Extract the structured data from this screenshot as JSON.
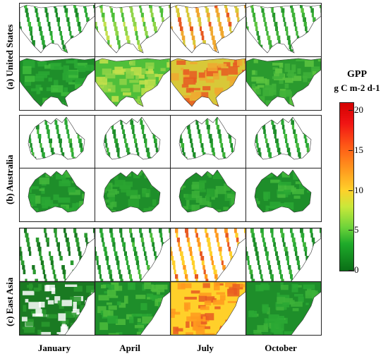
{
  "legend": {
    "title_line1": "GPP",
    "title_line2": "g C m-2 d-1",
    "ticks": [
      "0",
      "5",
      "10",
      "15",
      "20"
    ],
    "range": [
      0,
      21
    ],
    "colors": [
      "#0a6e16",
      "#1eaa2a",
      "#6fd43a",
      "#c8e83a",
      "#ffd02a",
      "#ff9a1e",
      "#ff5a16",
      "#f01414",
      "#d40000"
    ]
  },
  "rows": [
    {
      "label": "(a) United States",
      "region": "united-states"
    },
    {
      "label": "(b) Australia",
      "region": "australia"
    },
    {
      "label": "(c) East Asia",
      "region": "east-asia"
    }
  ],
  "columns": [
    "January",
    "April",
    "July",
    "October"
  ],
  "panel_types": [
    "orbit-swath-sample",
    "full-coverage-map"
  ]
}
